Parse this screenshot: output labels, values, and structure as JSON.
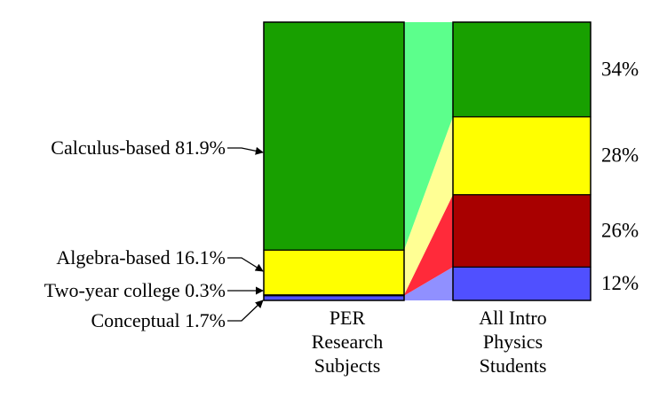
{
  "chart_data": {
    "type": "bar",
    "subtype": "stacked-100-percent",
    "categories": [
      "PER Research Subjects",
      "All Intro Physics Students"
    ],
    "category_label_lines": [
      [
        "PER",
        "Research",
        "Subjects"
      ],
      [
        "All Intro",
        "Physics",
        "Students"
      ]
    ],
    "segments": [
      "Conceptual",
      "Two-year college",
      "Algebra-based",
      "Calculus-based"
    ],
    "series": [
      {
        "name": "Conceptual",
        "values": [
          1.7,
          12
        ]
      },
      {
        "name": "Two-year college",
        "values": [
          0.3,
          26
        ]
      },
      {
        "name": "Algebra-based",
        "values": [
          16.1,
          28
        ]
      },
      {
        "name": "Calculus-based",
        "values": [
          81.9,
          34
        ]
      }
    ],
    "left_labels": [
      "Calculus-based 81.9%",
      "Algebra-based 16.1%",
      "Two-year college 0.3%",
      "Conceptual 1.7%"
    ],
    "right_labels": [
      "34%",
      "28%",
      "26%",
      "12%"
    ],
    "colors": {
      "Calculus-based": "#18a000",
      "Algebra-based": "#ffff00",
      "Two-year college": "#a80000",
      "Conceptual": "#5050ff"
    },
    "connector_colors": {
      "Calculus-based": "#5cff8c",
      "Algebra-based": "#ffff94",
      "Two-year college": "#ff2a3a",
      "Conceptual": "#9090ff"
    },
    "ylim": [
      0,
      100
    ],
    "grid": false,
    "legend": "none"
  }
}
